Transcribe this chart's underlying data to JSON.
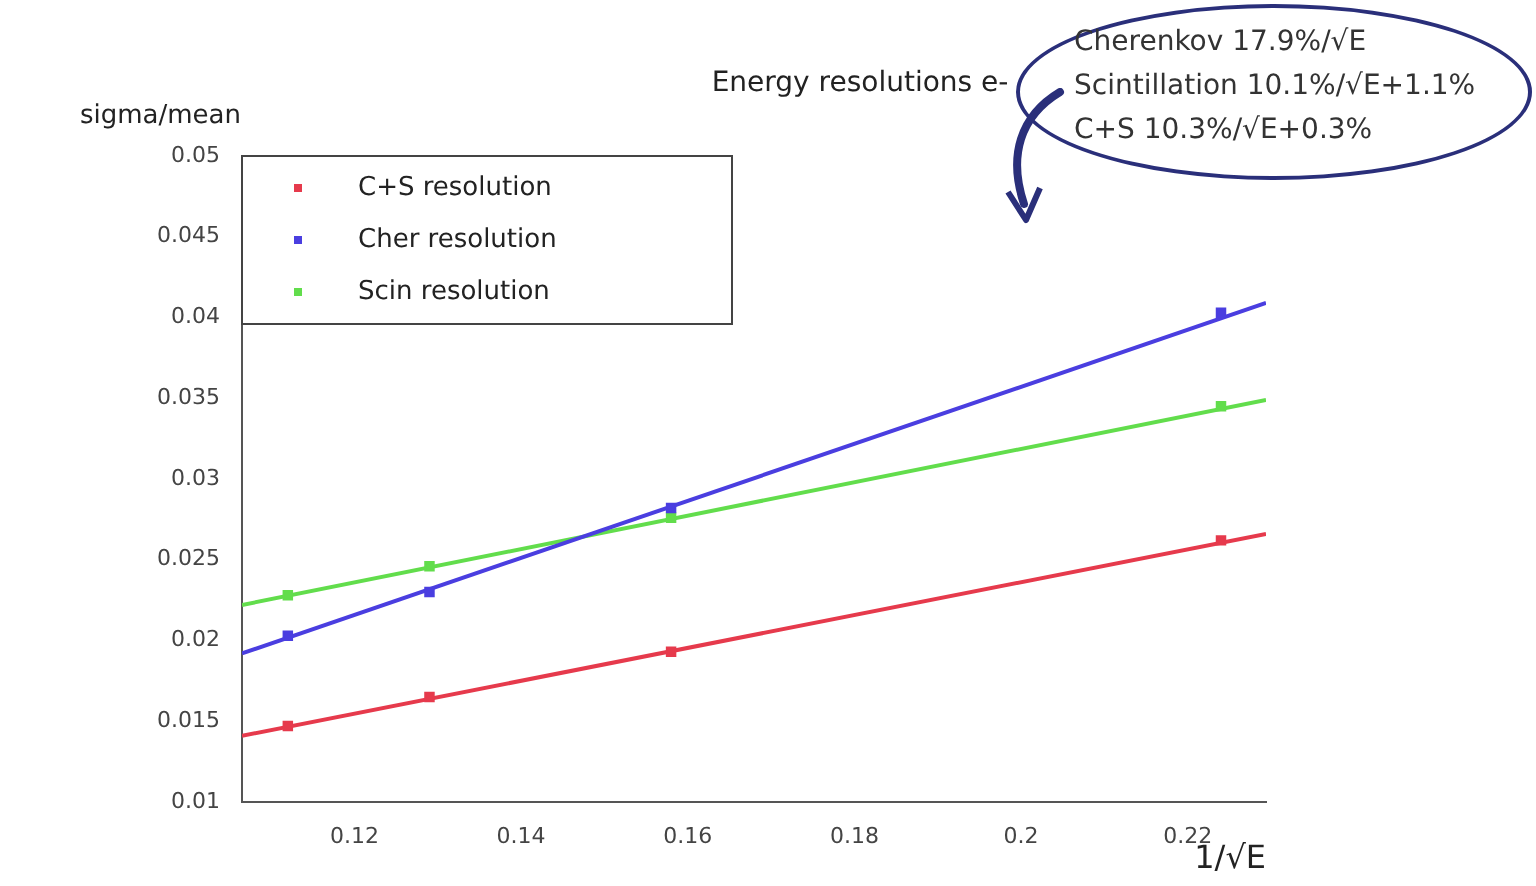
{
  "chart_data": {
    "type": "scatter",
    "title": "Energy resolutions e-",
    "ylabel": "sigma/mean",
    "xlabel": "1/√E",
    "annotations": [
      "Cherenkov 17.9%/√E",
      "Scintillation 10.1%/√E+1.1%",
      "C+S 10.3%/√E+0.3%"
    ],
    "xlim": [
      0.1065,
      0.2294
    ],
    "ylim": [
      0.01,
      0.05
    ],
    "xticks": [
      0.12,
      0.14,
      0.16,
      0.18,
      0.2,
      0.22
    ],
    "yticks": [
      0.01,
      0.015,
      0.02,
      0.025,
      0.03,
      0.035,
      0.04,
      0.045,
      0.05
    ],
    "legend": "top left",
    "marker": "square",
    "series": [
      {
        "name": "C+S resolution",
        "color": "#e63a4c",
        "x": [
          0.112,
          0.129,
          0.158,
          0.224
        ],
        "values": [
          0.0147,
          0.0165,
          0.0193,
          0.0262
        ]
      },
      {
        "name": "Cher resolution",
        "color": "#4a3ee0",
        "x": [
          0.112,
          0.129,
          0.158,
          0.224
        ],
        "values": [
          0.0203,
          0.023,
          0.0282,
          0.0403
        ]
      },
      {
        "name": "Scin resolution",
        "color": "#62dd4c",
        "x": [
          0.112,
          0.129,
          0.158,
          0.224
        ],
        "values": [
          0.0228,
          0.0246,
          0.0276,
          0.0345
        ]
      },
      {
        "type": "line",
        "marker": "none",
        "color": "#e63a4c",
        "x": [
          0.1065,
          0.2294
        ],
        "values": [
          0.0141,
          0.0266
        ]
      },
      {
        "type": "line",
        "marker": "none",
        "color": "#4a3ee0",
        "x": [
          0.1065,
          0.2294
        ],
        "values": [
          0.0192,
          0.0409
        ]
      },
      {
        "type": "line",
        "marker": "none",
        "color": "#62dd4c",
        "x": [
          0.1065,
          0.2294
        ],
        "values": [
          0.0222,
          0.0349
        ]
      }
    ]
  }
}
